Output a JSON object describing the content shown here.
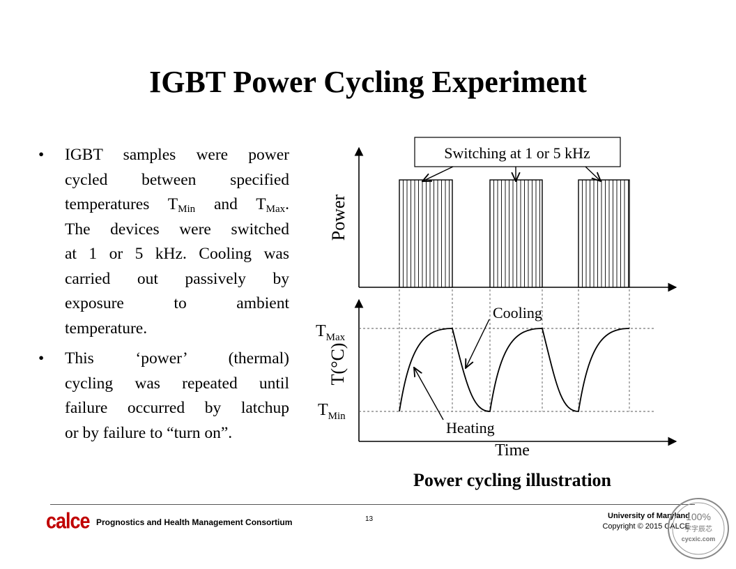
{
  "title": "IGBT Power Cycling Experiment",
  "bullets": [
    {
      "lines": [
        {
          "parts": [
            {
              "t": "IGBT samples were power"
            }
          ]
        },
        {
          "parts": [
            {
              "t": "cycled between specified"
            }
          ]
        },
        {
          "parts": [
            {
              "t": "temperatures T"
            },
            {
              "t": "Min",
              "sub": true
            },
            {
              "t": " and T"
            },
            {
              "t": "Max",
              "sub": true
            },
            {
              "t": "."
            }
          ]
        },
        {
          "parts": [
            {
              "t": "The devices were switched"
            }
          ]
        },
        {
          "parts": [
            {
              "t": "at 1 or 5 kHz. Cooling was"
            }
          ]
        },
        {
          "parts": [
            {
              "t": "carried out passively by"
            }
          ]
        },
        {
          "parts": [
            {
              "t": "exposure to ambient"
            }
          ]
        },
        {
          "parts": [
            {
              "t": "temperature."
            }
          ]
        }
      ]
    },
    {
      "lines": [
        {
          "parts": [
            {
              "t": "This ‘power’ (thermal)"
            }
          ]
        },
        {
          "parts": [
            {
              "t": "cycling was repeated until"
            }
          ]
        },
        {
          "parts": [
            {
              "t": "failure occurred by latchup"
            }
          ]
        },
        {
          "parts": [
            {
              "t": "or by failure to “turn on”."
            }
          ]
        }
      ]
    }
  ],
  "diagram": {
    "switching_label": "Switching at 1 or 5 kHz",
    "power_label": "Power",
    "temp_label": "T(°C)",
    "tmax_label": "T",
    "tmax_sub": "Max",
    "tmin_label": "T",
    "tmin_sub": "Min",
    "cooling_label": "Cooling",
    "heating_label": "Heating",
    "time_label": "Time"
  },
  "caption": "Power cycling illustration",
  "footer": {
    "logo": "calce",
    "consortium": "Prognostics and Health Management Consortium",
    "page": "13",
    "university": "University of Maryland",
    "copyright": "Copyright © 2015 CALCE"
  },
  "stamp": {
    "top": "100%",
    "middle": "字字辰芯",
    "bottom": "cycxic.com"
  }
}
